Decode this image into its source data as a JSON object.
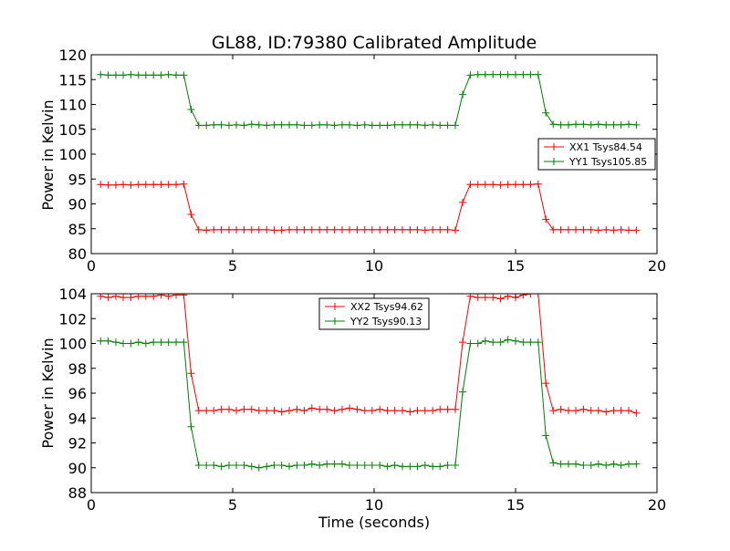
{
  "chart_data": [
    {
      "type": "line",
      "title": "GL88, ID:79380 Calibrated Amplitude",
      "xlabel": "",
      "ylabel": "Power in Kelvin",
      "xlim": [
        0,
        20
      ],
      "ylim": [
        80,
        120
      ],
      "x_ticks": [
        "0",
        "5",
        "10",
        "15",
        "20"
      ],
      "y_ticks": [
        "80",
        "85",
        "90",
        "95",
        "100",
        "105",
        "110",
        "115",
        "120"
      ],
      "legend_position": "center-right",
      "x": [
        0.33,
        0.6,
        0.87,
        1.13,
        1.4,
        1.67,
        1.93,
        2.2,
        2.47,
        2.73,
        3.0,
        3.27,
        3.53,
        3.8,
        4.07,
        4.33,
        4.6,
        4.87,
        5.13,
        5.4,
        5.67,
        5.93,
        6.2,
        6.47,
        6.73,
        7.0,
        7.27,
        7.53,
        7.8,
        8.07,
        8.33,
        8.6,
        8.87,
        9.13,
        9.4,
        9.67,
        9.93,
        10.2,
        10.47,
        10.73,
        11.0,
        11.27,
        11.53,
        11.8,
        12.07,
        12.33,
        12.6,
        12.87,
        13.13,
        13.4,
        13.67,
        13.93,
        14.2,
        14.47,
        14.73,
        15.0,
        15.27,
        15.53,
        15.8,
        16.07,
        16.33,
        16.6,
        16.87,
        17.13,
        17.4,
        17.67,
        17.93,
        18.2,
        18.47,
        18.73,
        19.0,
        19.27
      ],
      "series": [
        {
          "name": "XX1 Tsys84.54",
          "color": "#ff0000",
          "values": [
            93.9,
            93.8,
            93.8,
            93.9,
            93.8,
            93.9,
            93.9,
            93.9,
            93.9,
            93.9,
            93.9,
            94.0,
            87.9,
            84.8,
            84.7,
            84.8,
            84.8,
            84.8,
            84.8,
            84.8,
            84.8,
            84.8,
            84.8,
            84.7,
            84.7,
            84.8,
            84.8,
            84.8,
            84.8,
            84.8,
            84.8,
            84.8,
            84.8,
            84.8,
            84.8,
            84.8,
            84.8,
            84.8,
            84.8,
            84.8,
            84.8,
            84.8,
            84.8,
            84.7,
            84.8,
            84.8,
            84.8,
            84.7,
            90.3,
            93.9,
            93.9,
            93.9,
            93.9,
            93.8,
            93.9,
            93.9,
            93.9,
            93.9,
            94.0,
            86.9,
            84.8,
            84.8,
            84.8,
            84.8,
            84.8,
            84.8,
            84.7,
            84.8,
            84.7,
            84.8,
            84.7,
            84.7
          ]
        },
        {
          "name": "YY1 Tsys105.85",
          "color": "#008000",
          "values": [
            116.0,
            115.9,
            115.9,
            115.9,
            116.0,
            115.9,
            115.9,
            115.9,
            115.9,
            116.0,
            115.9,
            115.9,
            109.0,
            105.8,
            105.8,
            105.9,
            105.9,
            105.8,
            105.9,
            105.8,
            106.0,
            105.9,
            105.8,
            105.9,
            105.9,
            105.9,
            105.9,
            105.8,
            105.8,
            105.9,
            105.9,
            105.8,
            105.9,
            105.9,
            105.8,
            105.9,
            105.8,
            105.8,
            105.8,
            105.9,
            105.9,
            105.9,
            105.9,
            105.8,
            105.9,
            105.8,
            105.8,
            105.8,
            112.0,
            115.9,
            116.0,
            116.0,
            116.0,
            116.0,
            116.0,
            116.0,
            116.0,
            116.0,
            116.0,
            108.3,
            106.0,
            105.9,
            105.9,
            106.0,
            106.0,
            105.9,
            106.0,
            105.9,
            105.9,
            105.9,
            106.0,
            105.9
          ]
        }
      ]
    },
    {
      "type": "line",
      "title": "",
      "xlabel": "Time (seconds)",
      "ylabel": "Power in Kelvin",
      "xlim": [
        0,
        20
      ],
      "ylim": [
        88,
        104
      ],
      "x_ticks": [
        "0",
        "5",
        "10",
        "15",
        "20"
      ],
      "y_ticks": [
        "88",
        "90",
        "92",
        "94",
        "96",
        "98",
        "100",
        "102",
        "104"
      ],
      "legend_position": "top-center",
      "x": [
        0.33,
        0.6,
        0.87,
        1.13,
        1.4,
        1.67,
        1.93,
        2.2,
        2.47,
        2.73,
        3.0,
        3.27,
        3.53,
        3.8,
        4.07,
        4.33,
        4.6,
        4.87,
        5.13,
        5.4,
        5.67,
        5.93,
        6.2,
        6.47,
        6.73,
        7.0,
        7.27,
        7.53,
        7.8,
        8.07,
        8.33,
        8.6,
        8.87,
        9.13,
        9.4,
        9.67,
        9.93,
        10.2,
        10.47,
        10.73,
        11.0,
        11.27,
        11.53,
        11.8,
        12.07,
        12.33,
        12.6,
        12.87,
        13.13,
        13.4,
        13.67,
        13.93,
        14.2,
        14.47,
        14.73,
        15.0,
        15.27,
        15.53,
        15.8,
        16.07,
        16.33,
        16.6,
        16.87,
        17.13,
        17.4,
        17.67,
        17.93,
        18.2,
        18.47,
        18.73,
        19.0,
        19.27
      ],
      "series": [
        {
          "name": "XX2 Tsys94.62",
          "color": "#ff0000",
          "values": [
            103.8,
            103.7,
            103.8,
            103.7,
            103.7,
            103.8,
            103.8,
            103.8,
            103.9,
            103.8,
            103.9,
            103.9,
            97.6,
            94.6,
            94.6,
            94.6,
            94.7,
            94.7,
            94.6,
            94.7,
            94.7,
            94.6,
            94.6,
            94.6,
            94.5,
            94.6,
            94.7,
            94.6,
            94.8,
            94.7,
            94.7,
            94.6,
            94.7,
            94.8,
            94.7,
            94.6,
            94.6,
            94.7,
            94.6,
            94.6,
            94.6,
            94.5,
            94.6,
            94.6,
            94.6,
            94.7,
            94.7,
            94.7,
            100.1,
            103.8,
            103.7,
            103.7,
            103.7,
            103.6,
            103.8,
            103.7,
            103.9,
            104.0,
            104.0,
            96.8,
            94.6,
            94.7,
            94.6,
            94.6,
            94.7,
            94.6,
            94.6,
            94.5,
            94.6,
            94.6,
            94.6,
            94.4
          ]
        },
        {
          "name": "YY2 Tsys90.13",
          "color": "#008000",
          "values": [
            100.2,
            100.2,
            100.1,
            100.0,
            100.0,
            100.1,
            100.0,
            100.1,
            100.1,
            100.1,
            100.1,
            100.1,
            93.3,
            90.2,
            90.2,
            90.2,
            90.1,
            90.2,
            90.2,
            90.2,
            90.1,
            90.0,
            90.1,
            90.2,
            90.2,
            90.1,
            90.2,
            90.2,
            90.3,
            90.2,
            90.3,
            90.3,
            90.3,
            90.2,
            90.2,
            90.2,
            90.2,
            90.2,
            90.1,
            90.2,
            90.1,
            90.1,
            90.1,
            90.2,
            90.1,
            90.1,
            90.2,
            90.2,
            96.1,
            100.0,
            100.0,
            100.2,
            100.1,
            100.1,
            100.3,
            100.2,
            100.1,
            100.1,
            100.1,
            92.6,
            90.4,
            90.3,
            90.3,
            90.3,
            90.2,
            90.2,
            90.3,
            90.2,
            90.3,
            90.2,
            90.3,
            90.3
          ]
        }
      ]
    }
  ]
}
